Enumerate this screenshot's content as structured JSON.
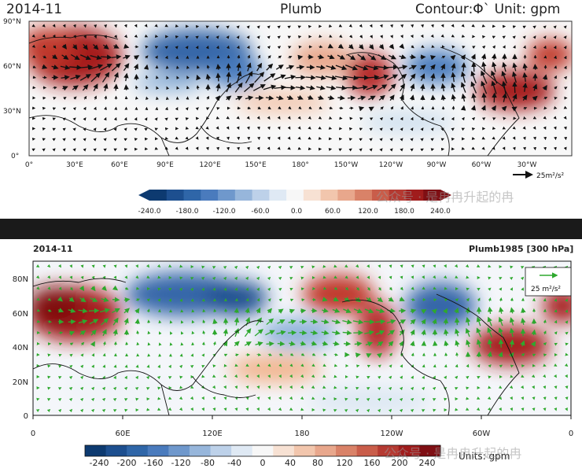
{
  "panel_top": {
    "date": "2014-11",
    "title": "Plumb",
    "contour_label": "Contour:Φ` Unit: gpm",
    "lat_ticks": [
      "90°N",
      "60°N",
      "30°N",
      "0°"
    ],
    "lon_ticks": [
      "0°",
      "30°E",
      "60°E",
      "90°E",
      "120°E",
      "150°E",
      "180°",
      "150°W",
      "120°W",
      "90°W",
      "60°W",
      "30°W"
    ],
    "ref_vector_label": "25m²/s²",
    "colorbar_ticks": [
      "-240.0",
      "-180.0",
      "-120.0",
      "-60.0",
      "0.0",
      "60.0",
      "120.0",
      "180.0",
      "240.0"
    ],
    "watermark": "公众号 · 是冉冉升起的冉"
  },
  "panel_bottom": {
    "date": "2014-11",
    "title": "Plumb1985 [300 hPa]",
    "lat_ticks": [
      "80N",
      "60N",
      "40N",
      "20N",
      "0"
    ],
    "lon_ticks": [
      "0",
      "60E",
      "120E",
      "180",
      "120W",
      "60W",
      "0"
    ],
    "ref_vector_label": "25 m²/s²",
    "colorbar_ticks": [
      "-240",
      "-200",
      "-160",
      "-120",
      "-80",
      "-40",
      "0",
      "40",
      "80",
      "120",
      "160",
      "200",
      "240"
    ],
    "units_label": "Units: gpm",
    "watermark": "公众号 · 是冉冉升起的冉"
  },
  "colors": {
    "positive": "#a01c1c",
    "negative": "#1d4f8f",
    "vector_top": "#111111",
    "vector_bottom": "#2ea82e",
    "divider": "#1a1a1a"
  }
}
